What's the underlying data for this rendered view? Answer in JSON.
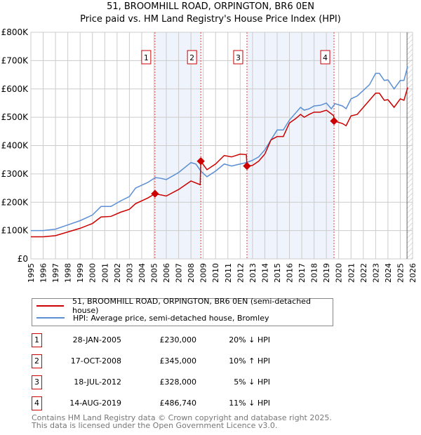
{
  "chart_data": {
    "type": "line",
    "title": "51, BROOMHILL ROAD, ORPINGTON, BR6 0EN",
    "subtitle": "Price paid vs. HM Land Registry's House Price Index (HPI)",
    "xlim": [
      1995,
      2026
    ],
    "ylim": [
      0,
      800000
    ],
    "y_ticks": [
      0,
      100000,
      200000,
      300000,
      400000,
      500000,
      600000,
      700000,
      800000
    ],
    "y_tick_labels": [
      "£0",
      "£100K",
      "£200K",
      "£300K",
      "£400K",
      "£500K",
      "£600K",
      "£700K",
      "£800K"
    ],
    "x_ticks": [
      1995,
      1996,
      1997,
      1998,
      1999,
      2000,
      2001,
      2002,
      2003,
      2004,
      2005,
      2006,
      2007,
      2008,
      2009,
      2010,
      2011,
      2012,
      2013,
      2014,
      2015,
      2016,
      2017,
      2018,
      2019,
      2020,
      2021,
      2022,
      2023,
      2024,
      2025,
      2026
    ],
    "grid": true,
    "legend_position": "below",
    "shaded_ranges": [
      [
        2005.08,
        2008.8
      ],
      [
        2012.55,
        2019.62
      ]
    ],
    "forecast_start": 2025.55,
    "series": [
      {
        "name": "51, BROOMHILL ROAD, ORPINGTON, BR6 0EN (semi-detached house)",
        "color": "#cc0000",
        "x": [
          1995,
          1996,
          1997,
          1998,
          1999,
          2000,
          2000.7,
          2001.5,
          2002.3,
          2003,
          2003.5,
          2004.5,
          2005.08,
          2006,
          2007,
          2008,
          2008.75,
          2008.8,
          2009.3,
          2010,
          2010.7,
          2011.3,
          2012,
          2012.5,
          2012.55,
          2013,
          2013.5,
          2014,
          2014.5,
          2015,
          2015.5,
          2016,
          2016.5,
          2016.9,
          2017.2,
          2017.6,
          2018,
          2018.5,
          2019,
          2019.4,
          2019.6,
          2019.62,
          2020.3,
          2020.6,
          2021,
          2021.5,
          2022,
          2022.5,
          2023,
          2023.3,
          2023.7,
          2024,
          2024.5,
          2025,
          2025.3,
          2025.6
        ],
        "y": [
          78000,
          78000,
          82000,
          95000,
          108000,
          125000,
          148000,
          150000,
          165000,
          175000,
          195000,
          215000,
          230000,
          222000,
          245000,
          275000,
          262000,
          345000,
          315000,
          335000,
          365000,
          360000,
          370000,
          368000,
          328000,
          330000,
          345000,
          370000,
          420000,
          432000,
          432000,
          480000,
          495000,
          510000,
          500000,
          510000,
          518000,
          518000,
          525000,
          512000,
          505000,
          486740,
          478000,
          470000,
          505000,
          510000,
          535000,
          560000,
          585000,
          585000,
          560000,
          562000,
          535000,
          565000,
          560000,
          605000
        ]
      },
      {
        "name": "HPI: Average price, semi-detached house, Bromley",
        "color": "#5b8fd4",
        "x": [
          1995,
          1996,
          1997,
          1998,
          1999,
          2000,
          2000.7,
          2001.5,
          2002.3,
          2003,
          2003.5,
          2004.5,
          2005.1,
          2005.5,
          2006,
          2007,
          2008,
          2008.4,
          2008.8,
          2009.3,
          2010,
          2010.7,
          2011.3,
          2012,
          2012.5,
          2013,
          2013.5,
          2014,
          2014.5,
          2015,
          2015.5,
          2016,
          2016.5,
          2016.9,
          2017.2,
          2017.6,
          2018,
          2018.5,
          2019,
          2019.4,
          2019.7,
          2020.3,
          2020.6,
          2021,
          2021.5,
          2022,
          2022.5,
          2023,
          2023.3,
          2023.7,
          2024,
          2024.5,
          2025,
          2025.3,
          2025.6
        ],
        "y": [
          100000,
          100000,
          105000,
          120000,
          135000,
          155000,
          185000,
          185000,
          205000,
          220000,
          250000,
          270000,
          287000,
          285000,
          280000,
          305000,
          340000,
          335000,
          310000,
          290000,
          310000,
          335000,
          328000,
          335000,
          340000,
          348000,
          360000,
          385000,
          420000,
          455000,
          455000,
          490000,
          515000,
          535000,
          525000,
          530000,
          540000,
          542000,
          550000,
          530000,
          548000,
          540000,
          530000,
          565000,
          575000,
          595000,
          615000,
          655000,
          655000,
          630000,
          632000,
          600000,
          630000,
          630000,
          680000
        ]
      }
    ],
    "sales": [
      {
        "label": "1",
        "x": 2005.08,
        "price": 230000,
        "date": "28-JAN-2005",
        "price_text": "£230,000",
        "hpi": "20% ↓ HPI"
      },
      {
        "label": "2",
        "x": 2008.8,
        "price": 345000,
        "date": "17-OCT-2008",
        "price_text": "£345,000",
        "hpi": "10% ↑ HPI"
      },
      {
        "label": "3",
        "x": 2012.55,
        "price": 328000,
        "date": "18-JUL-2012",
        "price_text": "£328,000",
        "hpi": "5% ↓ HPI"
      },
      {
        "label": "4",
        "x": 2019.62,
        "price": 486740,
        "date": "14-AUG-2019",
        "price_text": "£486,740",
        "hpi": "11% ↓ HPI"
      }
    ]
  },
  "footer": {
    "line1": "Contains HM Land Registry data © Crown copyright and database right 2025.",
    "line2": "This data is licensed under the Open Government Licence v3.0."
  }
}
